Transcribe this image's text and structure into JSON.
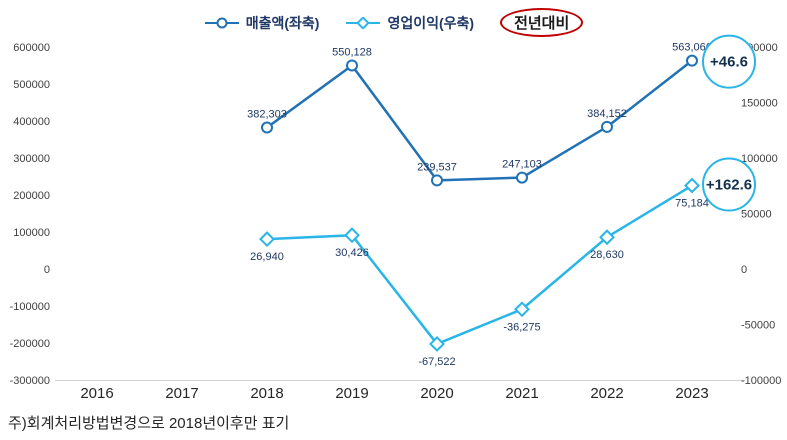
{
  "legend": {
    "items": [
      {
        "label": "매출액(좌축)",
        "marker": "circle-line",
        "color": "#2072b4"
      },
      {
        "label": "영업이익(우축)",
        "marker": "diamond-line",
        "color": "#29b5e8"
      },
      {
        "label": "전년대비",
        "marker": "red-ellipse",
        "color": "#c00000"
      }
    ]
  },
  "annotations": [
    {
      "text": "+46.6",
      "target": "revenue-2023"
    },
    {
      "text": "+162.6",
      "target": "operating-profit-2023"
    }
  ],
  "footnote": "주)회계처리방법변경으로 2018년이후만 표기",
  "colors": {
    "revenue": "#2072b4",
    "profit": "#29b5e8",
    "annotation_ring": "#29b5e8",
    "annotation_text": "#13314f",
    "yoy_ellipse": "#c00000",
    "data_label": "#1f3864",
    "axis_text": "#404040",
    "year_text": "#262626",
    "axis_line": "#d0d0d0"
  },
  "chart_data": {
    "type": "line",
    "categories": [
      "2016",
      "2017",
      "2018",
      "2019",
      "2020",
      "2021",
      "2022",
      "2023"
    ],
    "left_axis": {
      "min": -300000,
      "max": 600000,
      "step": 100000
    },
    "right_axis": {
      "min": -100000,
      "max": 200000,
      "step": 50000
    },
    "grid": false,
    "legend_position": "top",
    "series": [
      {
        "name": "매출액(좌축)",
        "axis": "left",
        "marker": "circle",
        "color": "#2072b4",
        "points": [
          {
            "x": "2018",
            "y": 382303,
            "label": "382,303",
            "label_pos": "above"
          },
          {
            "x": "2019",
            "y": 550128,
            "label": "550,128",
            "label_pos": "above"
          },
          {
            "x": "2020",
            "y": 239537,
            "label": "239,537",
            "label_pos": "above"
          },
          {
            "x": "2021",
            "y": 247103,
            "label": "247,103",
            "label_pos": "above"
          },
          {
            "x": "2022",
            "y": 384152,
            "label": "384,152",
            "label_pos": "above"
          },
          {
            "x": "2023",
            "y": 563066,
            "label": "563,066",
            "label_pos": "above"
          }
        ]
      },
      {
        "name": "영업이익(우축)",
        "axis": "right",
        "marker": "diamond",
        "color": "#29b5e8",
        "points": [
          {
            "x": "2018",
            "y": 26940,
            "label": "26,940",
            "label_pos": "below"
          },
          {
            "x": "2019",
            "y": 30426,
            "label": "30,426",
            "label_pos": "below"
          },
          {
            "x": "2020",
            "y": -67522,
            "label": "-67,522",
            "label_pos": "below"
          },
          {
            "x": "2021",
            "y": -36275,
            "label": "-36,275",
            "label_pos": "below"
          },
          {
            "x": "2022",
            "y": 28630,
            "label": "28,630",
            "label_pos": "below"
          },
          {
            "x": "2023",
            "y": 75184,
            "label": "75,184",
            "label_pos": "below"
          }
        ]
      }
    ]
  }
}
